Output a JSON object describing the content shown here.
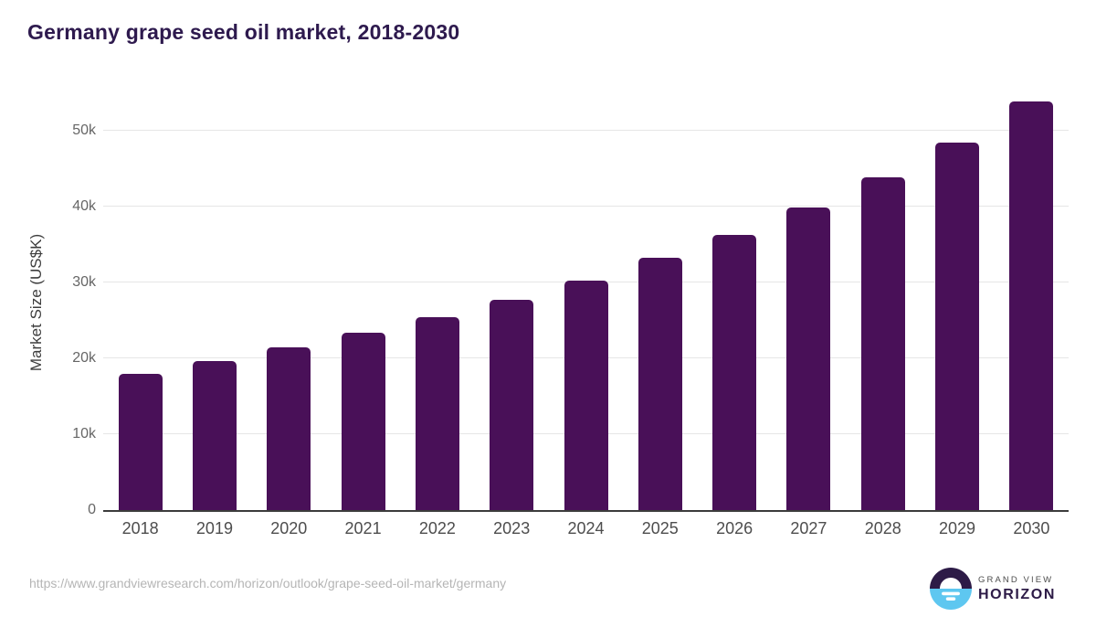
{
  "header": {
    "title": "Germany grape seed oil market, 2018-2030"
  },
  "chart_data": {
    "type": "bar",
    "title": "Germany grape seed oil market, 2018-2030",
    "xlabel": "",
    "ylabel": "Market Size (US$K)",
    "unit": "US$K",
    "categories": [
      "2018",
      "2019",
      "2020",
      "2021",
      "2022",
      "2023",
      "2024",
      "2025",
      "2026",
      "2027",
      "2028",
      "2029",
      "2030"
    ],
    "values": [
      17900,
      19700,
      21400,
      23400,
      25400,
      27700,
      30300,
      33200,
      36300,
      39900,
      43900,
      48400,
      53800
    ],
    "ylim": [
      0,
      54700
    ],
    "yticks": [
      {
        "value": 0,
        "label": "0"
      },
      {
        "value": 10000,
        "label": "10k"
      },
      {
        "value": 20000,
        "label": "20k"
      },
      {
        "value": 30000,
        "label": "30k"
      },
      {
        "value": 40000,
        "label": "40k"
      },
      {
        "value": 50000,
        "label": "50k"
      }
    ],
    "grid": true,
    "legend_position": "none",
    "bar_color": "#491058"
  },
  "footer": {
    "source_url": "https://www.grandviewresearch.com/horizon/outlook/grape-seed-oil-market/germany",
    "logo": {
      "line1": "GRAND VIEW",
      "line2": "HORIZON"
    }
  },
  "colors": {
    "title": "#2e1a4e",
    "bar": "#491058",
    "axis_line": "#3c3c3c",
    "gridline": "#e6e6e6",
    "x_tick_label": "#4d4d4d",
    "y_tick_label": "#666666",
    "url_text": "#b5b5b5",
    "logo_dark": "#2d1b47",
    "logo_blue": "#5ec7f0"
  }
}
